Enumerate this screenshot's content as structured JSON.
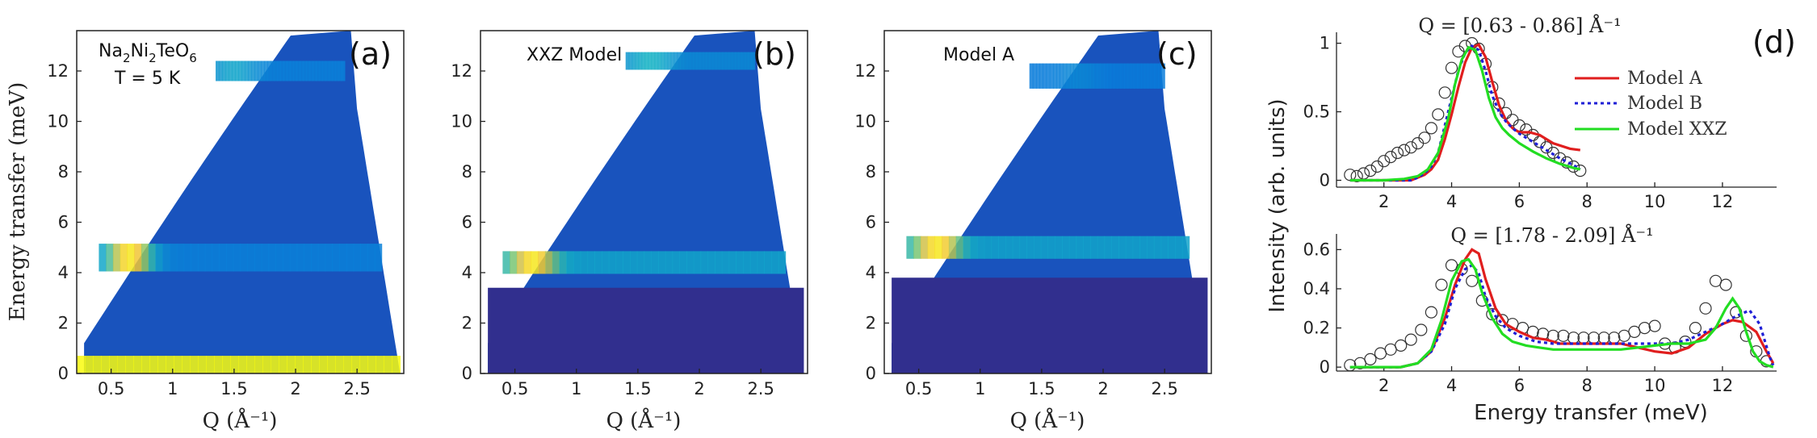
{
  "chart_data": [
    {
      "id": "a",
      "type": "heatmap",
      "letter": "(a)",
      "annotation": {
        "main": "Na",
        "sub1": "2",
        "mid1": "Ni",
        "sub2": "2",
        "mid2": "TeO",
        "sub3": "6",
        "temp": "T = 5 K"
      },
      "xlabel": "Q (Å⁻¹)",
      "ylabel": "Energy transfer (meV)",
      "xlim": [
        0.22,
        2.88
      ],
      "ylim": [
        0,
        13.6
      ],
      "xticks": [
        0.5,
        1,
        1.5,
        2,
        2.5
      ],
      "yticks": [
        0,
        2,
        4,
        6,
        8,
        10,
        12
      ],
      "bands": [
        {
          "name": "low-energy band",
          "energy": 4.6,
          "width": 0.55,
          "q_start": 0.4,
          "q_end": 2.7,
          "peak_q": 0.65,
          "peak": 0.95,
          "level": 0.32
        },
        {
          "name": "high-energy band",
          "energy": 12.0,
          "width": 0.4,
          "q_start": 1.35,
          "q_end": 2.4,
          "peak_q": 1.5,
          "peak": 0.45,
          "level": 0.32
        },
        {
          "name": "elastic line",
          "energy": 0.35,
          "width": 0.35,
          "q_start": 0.22,
          "q_end": 2.85,
          "peak_q": 0.6,
          "peak": 1.0,
          "level": 1.0
        }
      ]
    },
    {
      "id": "b",
      "type": "heatmap",
      "letter": "(b)",
      "label": "XXZ Model",
      "xlabel": "Q (Å⁻¹)",
      "xlim": [
        0.22,
        2.88
      ],
      "ylim": [
        0,
        13.6
      ],
      "xticks": [
        0.5,
        1,
        1.5,
        2,
        2.5
      ],
      "yticks": [
        0,
        2,
        4,
        6,
        8,
        10,
        12
      ],
      "bands": [
        {
          "name": "low-energy band",
          "energy": 4.4,
          "width": 0.45,
          "q_start": 0.4,
          "q_end": 2.7,
          "peak_q": 0.65,
          "peak": 0.95,
          "level": 0.45
        },
        {
          "name": "high-energy band",
          "energy": 12.4,
          "width": 0.35,
          "q_start": 1.4,
          "q_end": 2.45,
          "peak_q": 1.6,
          "peak": 0.5,
          "level": 0.35
        }
      ]
    },
    {
      "id": "c",
      "type": "heatmap",
      "letter": "(c)",
      "label": "Model A",
      "xlabel": "Q (Å⁻¹)",
      "xlim": [
        0.22,
        2.88
      ],
      "ylim": [
        0,
        13.6
      ],
      "xticks": [
        0.5,
        1,
        1.5,
        2,
        2.5
      ],
      "yticks": [
        0,
        2,
        4,
        6,
        8,
        10,
        12
      ],
      "bands": [
        {
          "name": "low-energy band",
          "energy": 5.0,
          "width": 0.45,
          "q_start": 0.4,
          "q_end": 2.7,
          "peak_q": 0.65,
          "peak": 0.95,
          "level": 0.45
        },
        {
          "name": "high-energy band",
          "energy": 11.8,
          "width": 0.5,
          "q_start": 1.4,
          "q_end": 2.5,
          "peak_q": 1.8,
          "peak": 0.35,
          "level": 0.3
        }
      ]
    },
    {
      "id": "d-top",
      "type": "line",
      "letter": "(d)",
      "title": "Q = [0.63 - 0.86] Å⁻¹",
      "xlim": [
        0.6,
        13.6
      ],
      "ylim": [
        -0.05,
        1.08
      ],
      "xticks": [
        2,
        4,
        6,
        8,
        10,
        12
      ],
      "yticks": [
        0,
        0.5,
        1
      ],
      "legend": [
        "Model A",
        "Model B",
        "Model XXZ"
      ],
      "legend_position": "top-right",
      "series": [
        {
          "name": "Data",
          "marker": "open-circle",
          "color": "#333333",
          "x": [
            1.0,
            1.2,
            1.4,
            1.6,
            1.8,
            2.0,
            2.2,
            2.4,
            2.6,
            2.8,
            3.0,
            3.2,
            3.4,
            3.6,
            3.8,
            4.0,
            4.2,
            4.4,
            4.6,
            4.8,
            5.0,
            5.2,
            5.4,
            5.6,
            5.8,
            6.0,
            6.2,
            6.4,
            6.6,
            6.8,
            7.0,
            7.2,
            7.4,
            7.6,
            7.8
          ],
          "y": [
            0.04,
            0.03,
            0.05,
            0.07,
            0.1,
            0.14,
            0.17,
            0.2,
            0.22,
            0.24,
            0.27,
            0.31,
            0.38,
            0.48,
            0.64,
            0.82,
            0.94,
            0.98,
            1.0,
            0.96,
            0.85,
            0.68,
            0.56,
            0.49,
            0.44,
            0.4,
            0.37,
            0.33,
            0.28,
            0.24,
            0.2,
            0.16,
            0.13,
            0.1,
            0.07
          ]
        },
        {
          "name": "Model A",
          "color": "#e01e1e",
          "x": [
            1.0,
            2.0,
            2.8,
            3.0,
            3.2,
            3.4,
            3.6,
            3.8,
            4.0,
            4.2,
            4.4,
            4.6,
            4.8,
            5.0,
            5.2,
            5.4,
            5.6,
            5.8,
            6.0,
            6.3,
            6.6,
            7.0,
            7.5,
            7.8
          ],
          "y": [
            0,
            0,
            0,
            0.02,
            0.04,
            0.08,
            0.15,
            0.3,
            0.48,
            0.68,
            0.86,
            0.97,
            0.99,
            0.9,
            0.72,
            0.55,
            0.44,
            0.38,
            0.35,
            0.35,
            0.33,
            0.27,
            0.23,
            0.22
          ]
        },
        {
          "name": "Model B",
          "color": "#1f1fd6",
          "dash": "4,4",
          "x": [
            1.0,
            2.0,
            2.8,
            3.0,
            3.2,
            3.4,
            3.6,
            3.8,
            4.0,
            4.2,
            4.4,
            4.6,
            4.8,
            5.0,
            5.2,
            5.4,
            5.6,
            5.8,
            6.0,
            6.4,
            6.8,
            7.2,
            7.6,
            7.8
          ],
          "y": [
            0,
            0,
            0,
            0.02,
            0.05,
            0.1,
            0.2,
            0.4,
            0.6,
            0.8,
            0.93,
            0.98,
            0.95,
            0.8,
            0.62,
            0.5,
            0.43,
            0.38,
            0.34,
            0.28,
            0.22,
            0.16,
            0.11,
            0.08
          ]
        },
        {
          "name": "Model XXZ",
          "color": "#22dd22",
          "x": [
            1.0,
            2.0,
            2.6,
            3.0,
            3.3,
            3.6,
            3.9,
            4.1,
            4.3,
            4.5,
            4.7,
            4.9,
            5.1,
            5.3,
            5.5,
            5.7,
            6.0,
            6.4,
            6.8,
            7.2,
            7.6,
            7.8
          ],
          "y": [
            0,
            0,
            0.01,
            0.03,
            0.08,
            0.2,
            0.45,
            0.7,
            0.88,
            0.97,
            0.95,
            0.8,
            0.6,
            0.46,
            0.38,
            0.33,
            0.27,
            0.21,
            0.16,
            0.12,
            0.09,
            0.08
          ]
        }
      ]
    },
    {
      "id": "d-bottom",
      "type": "line",
      "title": "Q = [1.78 - 2.09] Å⁻¹",
      "xlabel": "Energy transfer (meV)",
      "ylabel": "Intensity (arb. units)",
      "xlim": [
        0.6,
        13.6
      ],
      "ylim": [
        -0.02,
        0.68
      ],
      "xticks": [
        2,
        4,
        6,
        8,
        10,
        12
      ],
      "yticks": [
        0,
        0.2,
        0.4,
        0.6
      ],
      "series": [
        {
          "name": "Data",
          "marker": "open-circle",
          "color": "#333333",
          "x": [
            1.0,
            1.3,
            1.6,
            1.9,
            2.2,
            2.5,
            2.8,
            3.1,
            3.4,
            3.7,
            4.0,
            4.3,
            4.6,
            4.9,
            5.2,
            5.5,
            5.8,
            6.1,
            6.4,
            6.7,
            7.0,
            7.3,
            7.6,
            7.9,
            8.2,
            8.5,
            8.8,
            9.1,
            9.4,
            9.7,
            10.0,
            10.3,
            10.6,
            10.9,
            11.2,
            11.5,
            11.8,
            12.1,
            12.4,
            12.7,
            13.0,
            13.3
          ],
          "y": [
            0.01,
            0.02,
            0.04,
            0.07,
            0.09,
            0.11,
            0.14,
            0.19,
            0.28,
            0.42,
            0.52,
            0.5,
            0.44,
            0.34,
            0.27,
            0.24,
            0.22,
            0.2,
            0.18,
            0.17,
            0.16,
            0.16,
            0.15,
            0.15,
            0.15,
            0.15,
            0.15,
            0.16,
            0.18,
            0.2,
            0.21,
            0.12,
            0.1,
            0.13,
            0.2,
            0.3,
            0.44,
            0.42,
            0.28,
            0.16,
            0.08,
            0.03
          ]
        },
        {
          "name": "Model A",
          "color": "#e01e1e",
          "x": [
            1.0,
            2.5,
            3.0,
            3.4,
            3.8,
            4.1,
            4.4,
            4.6,
            4.8,
            5.0,
            5.3,
            5.6,
            6.0,
            6.4,
            6.8,
            7.2,
            7.6,
            8.0,
            9.0,
            10.0,
            10.5,
            11.0,
            11.5,
            12.0,
            12.3,
            12.6,
            13.0,
            13.3,
            13.5
          ],
          "y": [
            0,
            0,
            0.02,
            0.08,
            0.25,
            0.42,
            0.55,
            0.6,
            0.58,
            0.45,
            0.3,
            0.22,
            0.18,
            0.15,
            0.14,
            0.12,
            0.12,
            0.12,
            0.12,
            0.08,
            0.07,
            0.1,
            0.17,
            0.22,
            0.24,
            0.23,
            0.18,
            0.08,
            0.02
          ]
        },
        {
          "name": "Model B",
          "color": "#1f1fd6",
          "dash": "4,4",
          "x": [
            1.0,
            2.5,
            3.0,
            3.4,
            3.8,
            4.1,
            4.4,
            4.6,
            4.8,
            5.0,
            5.3,
            5.6,
            6.0,
            6.5,
            7.0,
            8.0,
            9.0,
            10.0,
            10.5,
            11.0,
            11.5,
            12.0,
            12.4,
            12.8,
            13.1,
            13.4,
            13.5
          ],
          "y": [
            0,
            0,
            0.02,
            0.08,
            0.22,
            0.4,
            0.5,
            0.52,
            0.48,
            0.36,
            0.26,
            0.2,
            0.16,
            0.13,
            0.12,
            0.12,
            0.12,
            0.12,
            0.12,
            0.14,
            0.18,
            0.22,
            0.26,
            0.29,
            0.22,
            0.05,
            0.01
          ]
        },
        {
          "name": "Model XXZ",
          "color": "#22dd22",
          "x": [
            1.0,
            2.5,
            3.0,
            3.4,
            3.7,
            4.0,
            4.3,
            4.5,
            4.7,
            4.9,
            5.2,
            5.5,
            5.8,
            6.2,
            6.6,
            7.0,
            7.5,
            8.0,
            8.5,
            9.0,
            9.5,
            10.0,
            10.5,
            11.0,
            11.5,
            11.8,
            12.1,
            12.3,
            12.5,
            12.7,
            12.9,
            13.1,
            13.3,
            13.5
          ],
          "y": [
            0,
            0,
            0.02,
            0.09,
            0.24,
            0.44,
            0.54,
            0.55,
            0.5,
            0.38,
            0.25,
            0.17,
            0.13,
            0.11,
            0.1,
            0.09,
            0.09,
            0.09,
            0.09,
            0.09,
            0.1,
            0.11,
            0.12,
            0.12,
            0.14,
            0.2,
            0.3,
            0.35,
            0.3,
            0.18,
            0.08,
            0.03,
            0.01,
            0
          ]
        }
      ]
    }
  ]
}
